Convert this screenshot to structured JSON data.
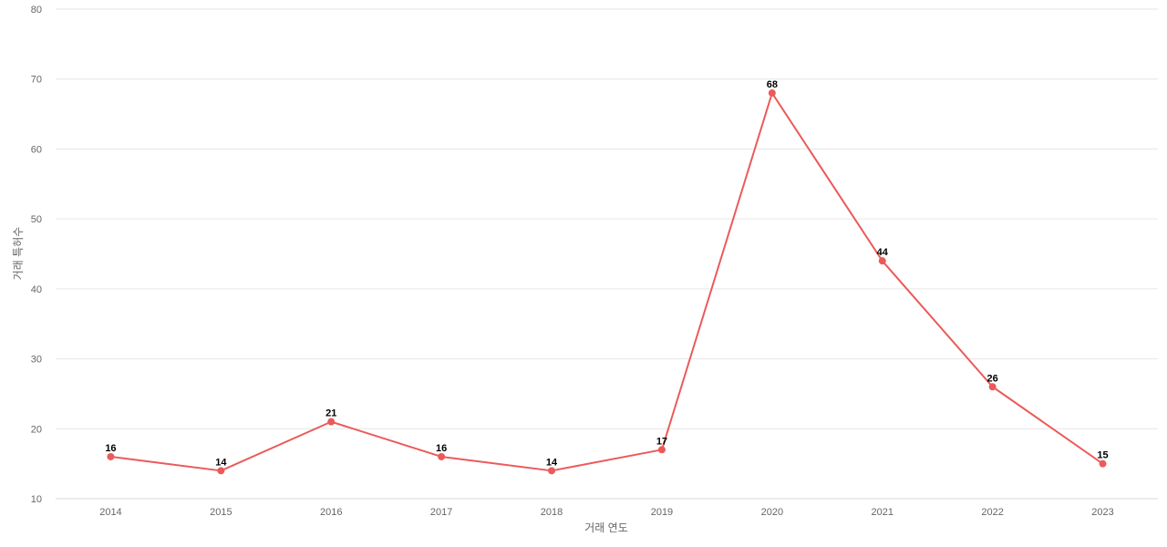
{
  "chart_data": {
    "type": "line",
    "title": "",
    "xlabel": "거래 연도",
    "ylabel": "거래 특허수",
    "categories": [
      "2014",
      "2015",
      "2016",
      "2017",
      "2018",
      "2019",
      "2020",
      "2021",
      "2022",
      "2023"
    ],
    "series": [
      {
        "values": [
          16,
          14,
          21,
          16,
          14,
          17,
          68,
          44,
          26,
          15
        ],
        "color": "#eb5a5a"
      }
    ],
    "ylim": [
      10,
      80
    ],
    "yticks": [
      10,
      20,
      30,
      40,
      50,
      60,
      70,
      80
    ],
    "grid": true,
    "legend": "none",
    "show_data_labels": true
  }
}
